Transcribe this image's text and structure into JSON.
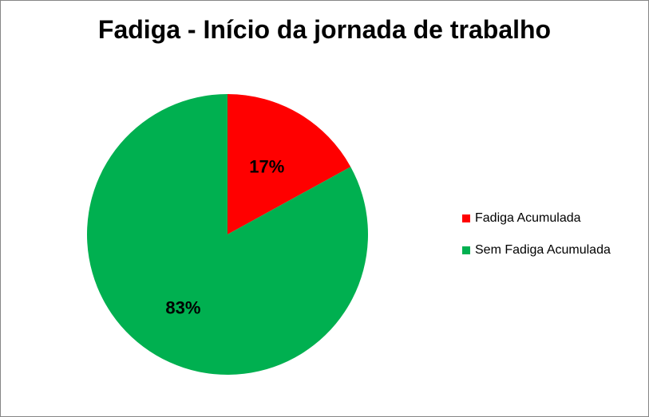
{
  "chart_data": {
    "type": "pie",
    "title": "Fadiga - Início da jornada de trabalho",
    "slices": [
      {
        "label": "Fadiga Acumulada",
        "value": 17,
        "display": "17%",
        "color": "#FF0000"
      },
      {
        "label": "Sem Fadiga Acumulada",
        "value": 83,
        "display": "83%",
        "color": "#00B050"
      }
    ],
    "legend_position": "right"
  }
}
